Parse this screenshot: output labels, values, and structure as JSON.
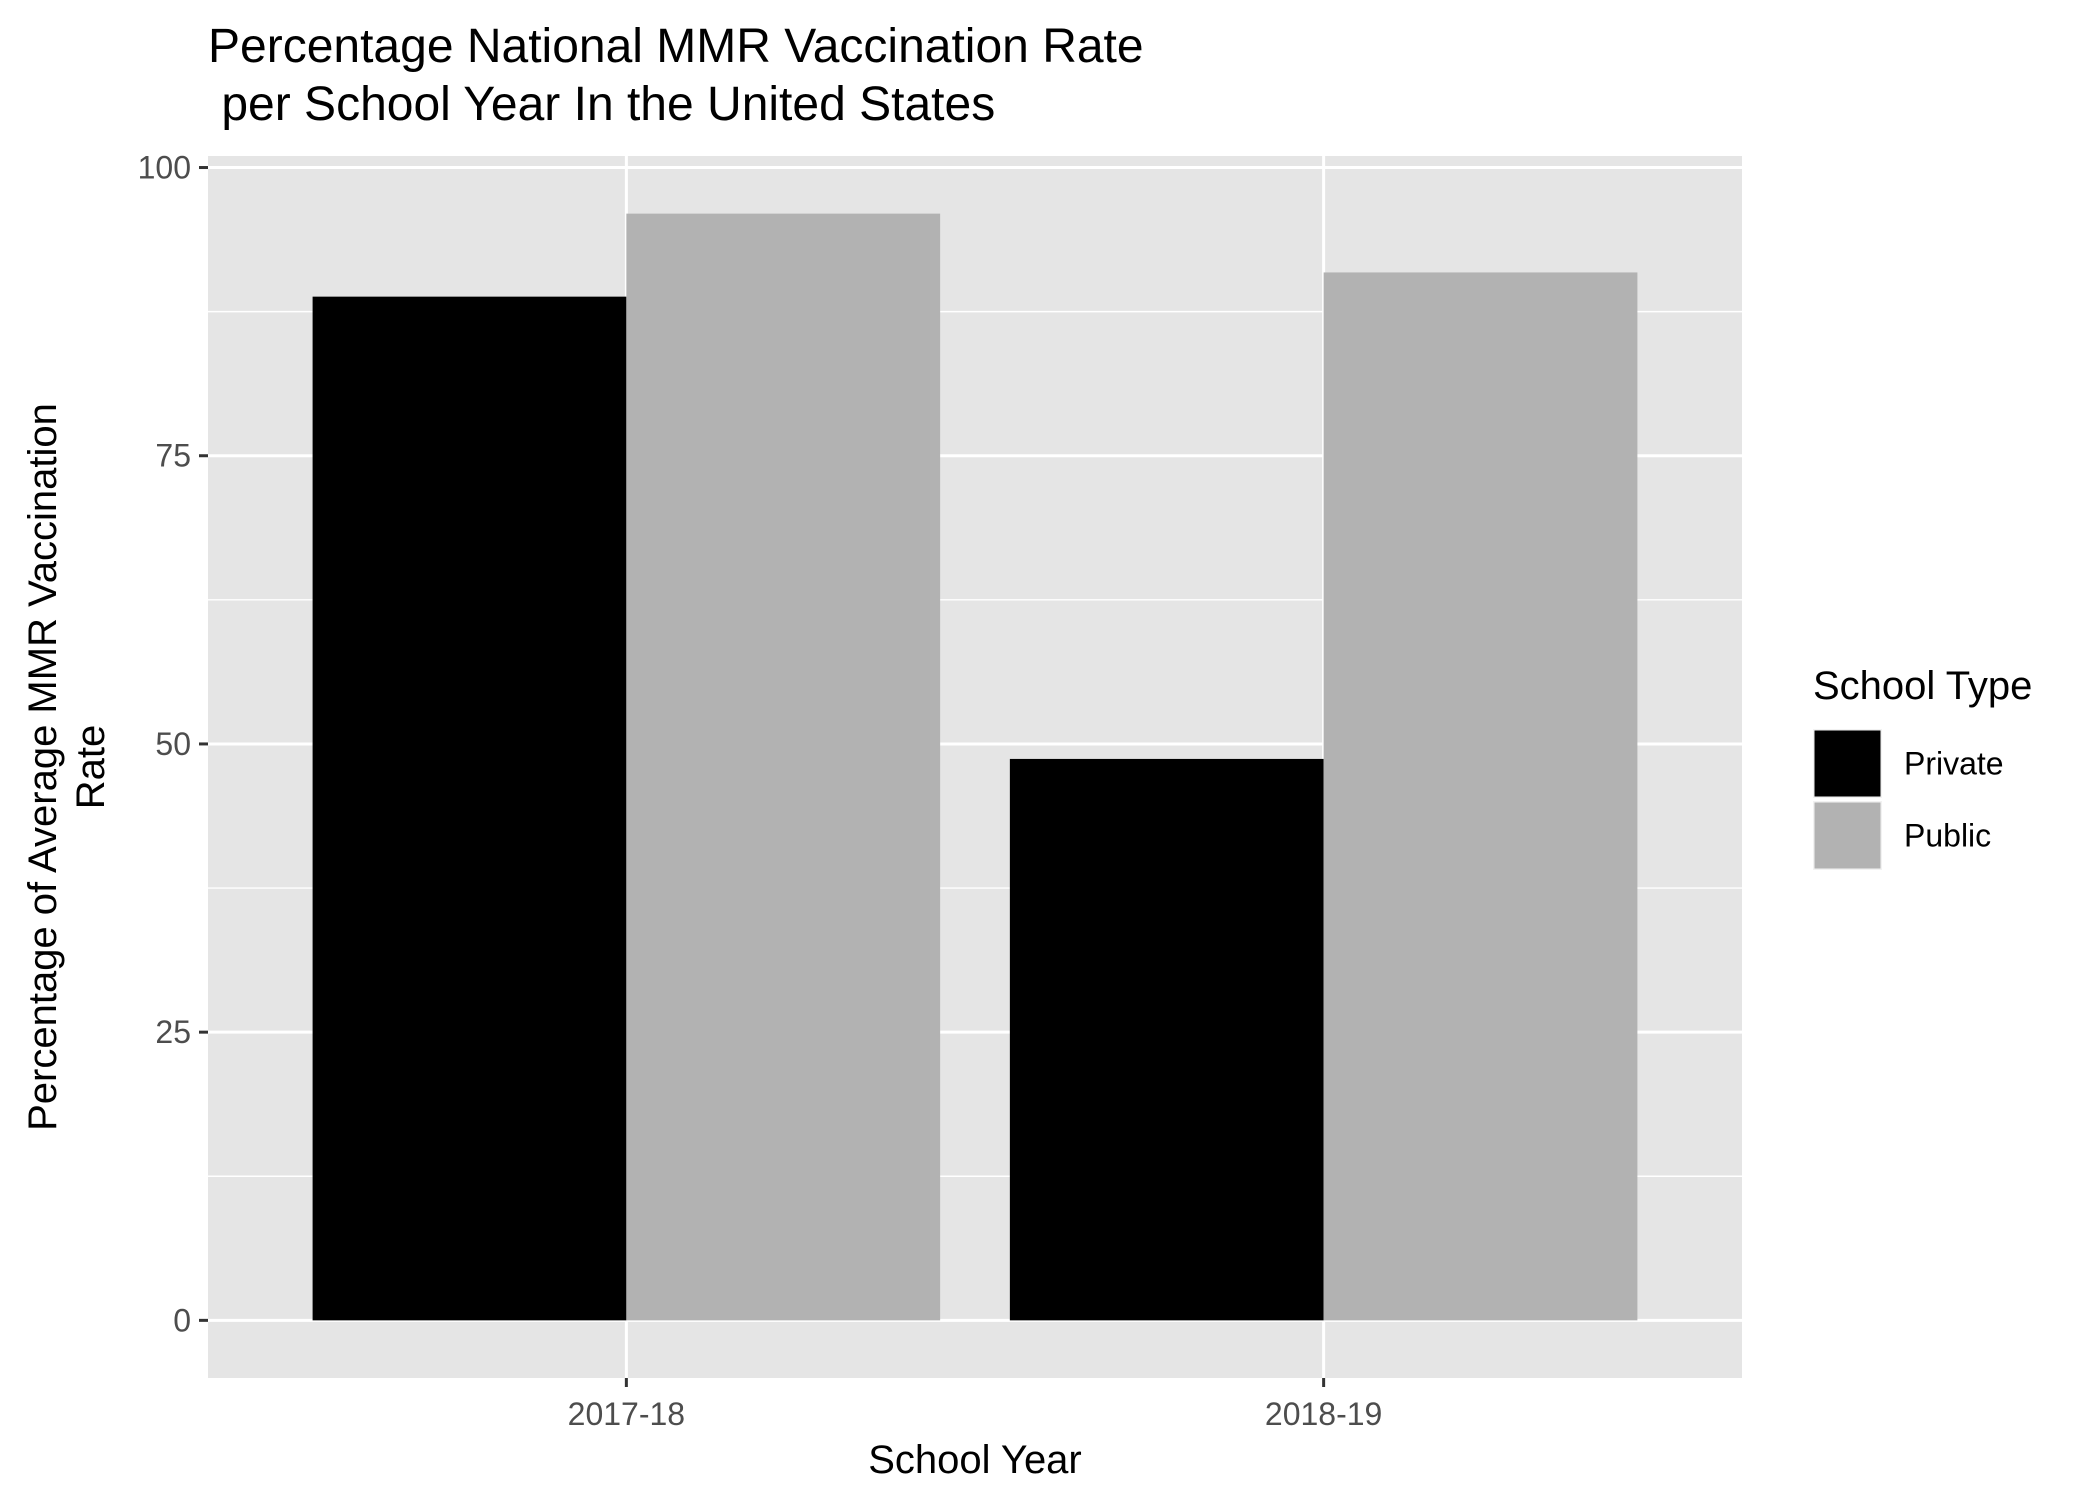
{
  "chart_data": {
    "type": "bar",
    "title": "Percentage National MMR Vaccination Rate\n per School Year In the United States",
    "title_lines": [
      "Percentage National MMR Vaccination Rate",
      " per School Year In the United States"
    ],
    "xlabel": "School Year",
    "ylabel": "Percentage of Average MMR Vaccination\nRate",
    "ylabel_lines": [
      "Percentage of Average MMR Vaccination",
      "Rate"
    ],
    "categories": [
      "2017-18",
      "2018-19"
    ],
    "series": [
      {
        "name": "Private",
        "values": [
          88.8,
          48.7
        ],
        "color": "#000000"
      },
      {
        "name": "Public",
        "values": [
          96.0,
          90.9
        ],
        "color": "#b2b2b2"
      }
    ],
    "ylim": [
      -5,
      101
    ],
    "y_ticks": [
      0,
      25,
      50,
      75,
      100
    ],
    "grid": true,
    "panel_background": "#e5e5e5",
    "grid_color": "#ffffff",
    "legend": {
      "title": "School Type",
      "position": "right"
    }
  }
}
